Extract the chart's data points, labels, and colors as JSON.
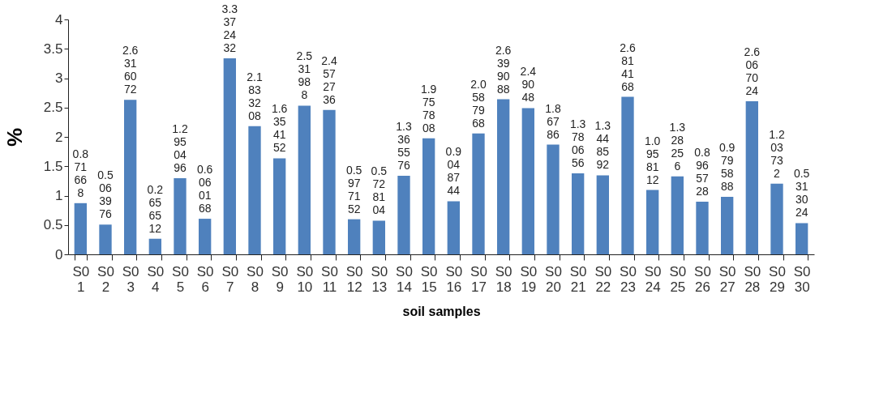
{
  "chart_data": {
    "type": "bar",
    "xlabel": "soil samples",
    "ylabel": "%",
    "categories": [
      "S01",
      "S02",
      "S03",
      "S04",
      "S05",
      "S06",
      "S07",
      "S08",
      "S09",
      "S010",
      "S011",
      "S012",
      "S013",
      "S014",
      "S015",
      "S016",
      "S017",
      "S018",
      "S019",
      "S020",
      "S021",
      "S022",
      "S023",
      "S024",
      "S025",
      "S026",
      "S027",
      "S028",
      "S029",
      "S030"
    ],
    "values": [
      0.871668,
      0.5063976,
      2.6316072,
      0.2656512,
      1.2950496,
      0.6060168,
      3.3372432,
      2.1833208,
      1.6354152,
      2.531988,
      2.4572736,
      0.5977152,
      0.5728104,
      1.3365576,
      1.9757808,
      0.9048744,
      2.0587968,
      2.6399088,
      2.49048,
      1.86786,
      1.3780656,
      1.3448592,
      2.6814168,
      1.0958112,
      1.328256,
      0.8965728,
      0.9795888,
      2.6067024,
      1.203732,
      0.5313024
    ],
    "color": "#4f81bd",
    "ylim": [
      0,
      4
    ],
    "yticks": [
      0,
      0.5,
      1,
      1.5,
      2,
      2.5,
      3,
      3.5,
      4
    ],
    "data_labels": true,
    "grid": false,
    "legend": false
  }
}
